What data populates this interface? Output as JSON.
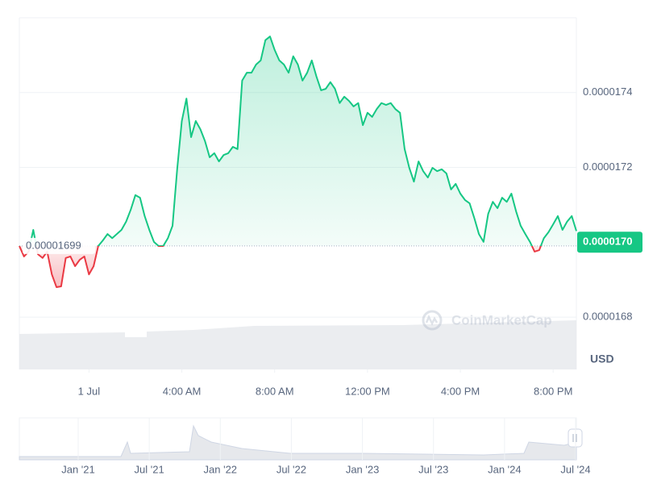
{
  "chart_data": {
    "type": "line",
    "color": "#16c784",
    "down_color": "#ea3943",
    "xlim": [
      -3,
      21
    ],
    "xticks": [
      {
        "value": 0,
        "label": "1 Jul"
      },
      {
        "value": 4,
        "label": "4:00 AM"
      },
      {
        "value": 8,
        "label": "8:00 AM"
      },
      {
        "value": 12,
        "label": "12:00 PM"
      },
      {
        "value": 16,
        "label": "4:00 PM"
      },
      {
        "value": 20,
        "label": "8:00 PM"
      }
    ],
    "ylim": [
      1.666e-05,
      1.76e-05
    ],
    "yticks": [
      1.68e-05,
      1.72e-05,
      1.74e-05
    ],
    "grid": true,
    "baseline": {
      "value": 1.699e-05,
      "label": "0.00001699"
    },
    "last_price": {
      "value": 1.7e-05,
      "label": "0.0000170"
    },
    "currency": "USD",
    "watermark": "CoinMarketCap",
    "x": [
      -3,
      -2.8,
      -2.6,
      -2.4,
      -2.2,
      -2,
      -1.8,
      -1.6,
      -1.4,
      -1.2,
      -1,
      -0.8,
      -0.6,
      -0.4,
      -0.2,
      0,
      0.2,
      0.4,
      0.6,
      0.8,
      1,
      1.2,
      1.4,
      1.6,
      1.8,
      2,
      2.2,
      2.4,
      2.6,
      2.8,
      3,
      3.2,
      3.4,
      3.6,
      3.8,
      4,
      4.2,
      4.4,
      4.6,
      4.8,
      5,
      5.2,
      5.4,
      5.6,
      5.8,
      6,
      6.2,
      6.4,
      6.6,
      6.8,
      7,
      7.2,
      7.4,
      7.6,
      7.8,
      8,
      8.2,
      8.4,
      8.6,
      8.8,
      9,
      9.2,
      9.4,
      9.6,
      9.8,
      10,
      10.2,
      10.4,
      10.6,
      10.8,
      11,
      11.2,
      11.4,
      11.6,
      11.8,
      12,
      12.2,
      12.4,
      12.6,
      12.8,
      13,
      13.2,
      13.4,
      13.6,
      13.8,
      14,
      14.2,
      14.4,
      14.6,
      14.8,
      15,
      15.2,
      15.4,
      15.6,
      15.8,
      16,
      16.2,
      16.4,
      16.6,
      16.8,
      17,
      17.2,
      17.4,
      17.6,
      17.8,
      18,
      18.2,
      18.4,
      18.6,
      18.8,
      19,
      19.2,
      19.4,
      19.6,
      19.8,
      20,
      20.2,
      20.4,
      20.6,
      20.8,
      21
    ],
    "values": [
      1.699e-05,
      1.6962e-05,
      1.6975e-05,
      1.7033e-05,
      1.6968e-05,
      1.6958e-05,
      1.6975e-05,
      1.6914e-05,
      1.688e-05,
      1.6882e-05,
      1.6958e-05,
      1.6962e-05,
      1.6936e-05,
      1.6953e-05,
      1.6962e-05,
      1.6914e-05,
      1.6936e-05,
      1.699e-05,
      1.7005e-05,
      1.7022e-05,
      1.7011e-05,
      1.7022e-05,
      1.7033e-05,
      1.7055e-05,
      1.7087e-05,
      1.7126e-05,
      1.7119e-05,
      1.707e-05,
      1.7033e-05,
      1.7001e-05,
      1.699e-05,
      1.699e-05,
      1.7011e-05,
      1.7044e-05,
      1.7195e-05,
      1.7324e-05,
      1.7384e-05,
      1.7281e-05,
      1.7324e-05,
      1.7302e-05,
      1.727e-05,
      1.7227e-05,
      1.7238e-05,
      1.7216e-05,
      1.7233e-05,
      1.7238e-05,
      1.7255e-05,
      1.7249e-05,
      1.7432e-05,
      1.7453e-05,
      1.7453e-05,
      1.7475e-05,
      1.7486e-05,
      1.754e-05,
      1.755e-05,
      1.7514e-05,
      1.7486e-05,
      1.7475e-05,
      1.7453e-05,
      1.7497e-05,
      1.7475e-05,
      1.7432e-05,
      1.7453e-05,
      1.7486e-05,
      1.7443e-05,
      1.7406e-05,
      1.741e-05,
      1.7428e-05,
      1.741e-05,
      1.7372e-05,
      1.7389e-05,
      1.7378e-05,
      1.7363e-05,
      1.7372e-05,
      1.7313e-05,
      1.7346e-05,
      1.7335e-05,
      1.7356e-05,
      1.7372e-05,
      1.7367e-05,
      1.7372e-05,
      1.7356e-05,
      1.7346e-05,
      1.7249e-05,
      1.7199e-05,
      1.7162e-05,
      1.7216e-05,
      1.719e-05,
      1.7173e-05,
      1.7199e-05,
      1.719e-05,
      1.7195e-05,
      1.7184e-05,
      1.7141e-05,
      1.7156e-05,
      1.713e-05,
      1.7113e-05,
      1.7104e-05,
      1.7065e-05,
      1.7022e-05,
      1.7001e-05,
      1.7076e-05,
      1.7108e-05,
      1.7091e-05,
      1.7119e-05,
      1.7108e-05,
      1.713e-05,
      1.7083e-05,
      1.7044e-05,
      1.7022e-05,
      1.7001e-05,
      1.6975e-05,
      1.6979e-05,
      1.7011e-05,
      1.7027e-05,
      1.7048e-05,
      1.707e-05,
      1.7033e-05,
      1.7055e-05,
      1.707e-05,
      1.703e-05
    ],
    "navigator": {
      "labels": [
        "Jan '21",
        "Jul '21",
        "Jan '22",
        "Jul '22",
        "Jan '23",
        "Jul '23",
        "Jan '24",
        "Jul '24"
      ]
    }
  }
}
